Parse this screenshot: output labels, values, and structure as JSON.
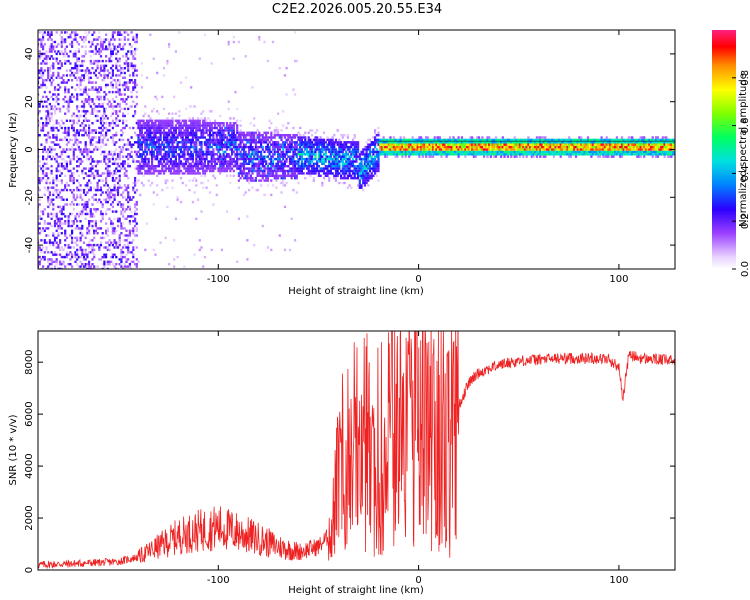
{
  "title": "C2E2.2026.005.20.55.E34",
  "chart_data": [
    {
      "type": "heatmap",
      "xlabel": "Height of straight line (km)",
      "ylabel": "Frequency (Hz)",
      "xlim": [
        -190,
        128
      ],
      "ylim": [
        -50,
        50
      ],
      "xticks": [
        -100,
        0,
        100
      ],
      "yticks": [
        -40,
        -20,
        0,
        20,
        40
      ],
      "colorbar": {
        "label": "Normalized spectral amplitude",
        "range": [
          0,
          1
        ],
        "ticks": [
          0.0,
          0.2,
          0.4,
          0.6,
          0.8
        ],
        "tick_labels": [
          "0.0",
          "0.2",
          "0.4",
          "0.6",
          "0.8"
        ]
      },
      "regions": [
        {
          "x": [
            -190,
            -140
          ],
          "freq_spread": [
            -50,
            50
          ],
          "amplitude": [
            0.05,
            0.25
          ],
          "description_level": "scattered noise"
        },
        {
          "x": [
            -155,
            -60
          ],
          "freq_spread": [
            -12,
            12
          ],
          "amplitude": [
            0.15,
            0.35
          ]
        },
        {
          "x": [
            -60,
            -20
          ],
          "freq_spread": [
            -10,
            8
          ],
          "amplitude": [
            0.25,
            0.5
          ]
        },
        {
          "x": [
            -20,
            128
          ],
          "freq_spread": [
            -2,
            2
          ],
          "amplitude": [
            0.6,
            1.0
          ]
        }
      ]
    },
    {
      "type": "line",
      "xlabel": "Height of straight line (km)",
      "ylabel": "SNR (10 * v/v)",
      "xlim": [
        -190,
        128
      ],
      "ylim": [
        0,
        9200
      ],
      "xticks": [
        -100,
        0,
        100
      ],
      "yticks": [
        0,
        2000,
        4000,
        6000,
        8000
      ],
      "color": "#ee2222",
      "series": [
        {
          "name": "SNR",
          "x": [
            -190,
            -170,
            -150,
            -140,
            -130,
            -120,
            -110,
            -100,
            -90,
            -80,
            -70,
            -60,
            -50,
            -45,
            -40,
            -35,
            -30,
            -25,
            -20,
            -15,
            -10,
            -5,
            0,
            5,
            10,
            15,
            20,
            25,
            30,
            40,
            50,
            60,
            70,
            80,
            90,
            95,
            100,
            102,
            105,
            110,
            120,
            128
          ],
          "values": [
            200,
            250,
            320,
            500,
            900,
            1300,
            1500,
            1650,
            1450,
            1200,
            900,
            700,
            900,
            1300,
            3500,
            5200,
            3600,
            4500,
            2500,
            5600,
            5300,
            5700,
            6200,
            6500,
            5800,
            4700,
            6300,
            7200,
            7600,
            7900,
            8050,
            8100,
            8150,
            8150,
            8150,
            8100,
            7800,
            6600,
            8300,
            8150,
            8100,
            8050
          ]
        }
      ]
    }
  ]
}
